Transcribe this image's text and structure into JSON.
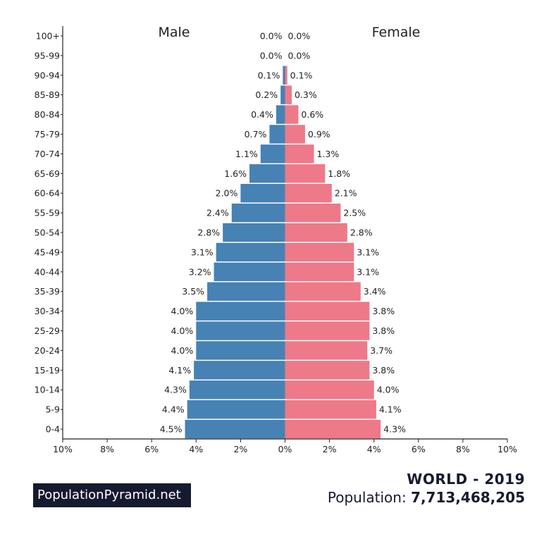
{
  "chart_data": {
    "type": "bar",
    "orientation": "horizontal-pyramid",
    "categories": [
      "100+",
      "95-99",
      "90-94",
      "85-89",
      "80-84",
      "75-79",
      "70-74",
      "65-69",
      "60-64",
      "55-59",
      "50-54",
      "45-49",
      "40-44",
      "35-39",
      "30-34",
      "25-29",
      "20-24",
      "15-19",
      "10-14",
      "5-9",
      "0-4"
    ],
    "series": [
      {
        "name": "Male",
        "side": "left",
        "color": "#4682b4",
        "values": [
          0.0,
          0.0,
          0.1,
          0.2,
          0.4,
          0.7,
          1.1,
          1.6,
          2.0,
          2.4,
          2.8,
          3.1,
          3.2,
          3.5,
          4.0,
          4.0,
          4.0,
          4.1,
          4.3,
          4.4,
          4.5
        ]
      },
      {
        "name": "Female",
        "side": "right",
        "color": "#ee7989",
        "values": [
          0.0,
          0.0,
          0.1,
          0.3,
          0.6,
          0.9,
          1.3,
          1.8,
          2.1,
          2.5,
          2.8,
          3.1,
          3.1,
          3.4,
          3.8,
          3.8,
          3.7,
          3.8,
          4.0,
          4.1,
          4.3
        ]
      }
    ],
    "xlim": [
      -10,
      10
    ],
    "xticks": [
      "10%",
      "8%",
      "6%",
      "4%",
      "2%",
      "0%",
      "2%",
      "4%",
      "6%",
      "8%",
      "10%"
    ],
    "unit": "%"
  },
  "footer": {
    "brand": "PopulationPyramid.net",
    "title": "WORLD - 2019",
    "population_label": "Population:",
    "population_value": "7,713,468,205"
  }
}
